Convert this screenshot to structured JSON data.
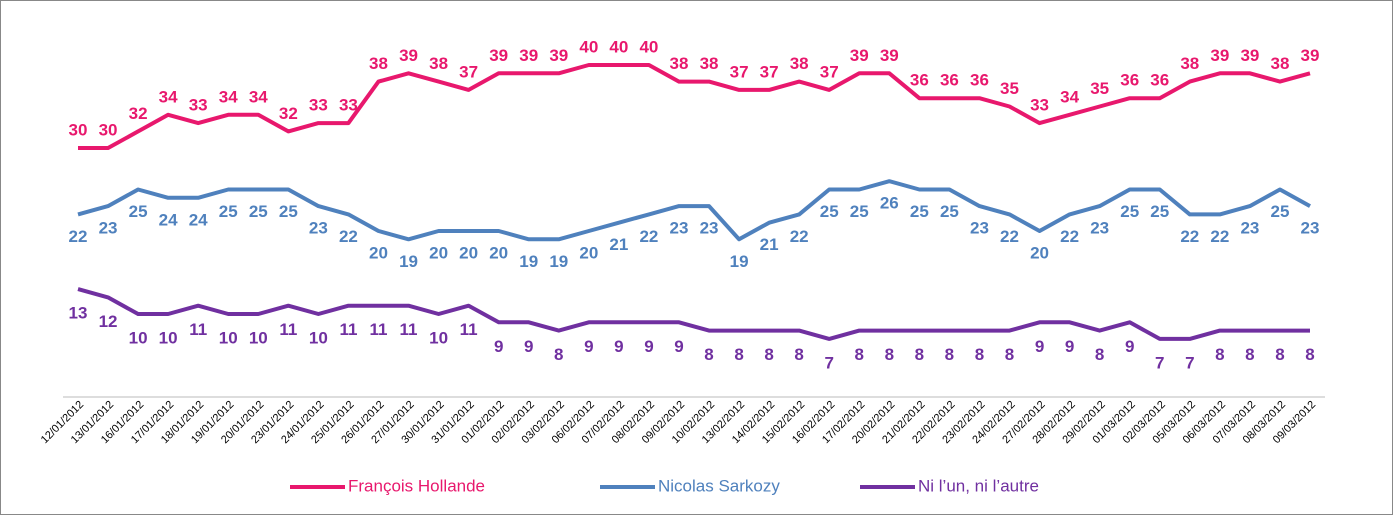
{
  "chart_data": {
    "type": "line",
    "categories": [
      "12/01/2012",
      "13/01/2012",
      "16/01/2012",
      "17/01/2012",
      "18/01/2012",
      "19/01/2012",
      "20/01/2012",
      "23/01/2012",
      "24/01/2012",
      "25/01/2012",
      "26/01/2012",
      "27/01/2012",
      "30/01/2012",
      "31/01/2012",
      "01/02/2012",
      "02/02/2012",
      "03/02/2012",
      "06/02/2012",
      "07/02/2012",
      "08/02/2012",
      "09/02/2012",
      "10/02/2012",
      "13/02/2012",
      "14/02/2012",
      "15/02/2012",
      "16/02/2012",
      "17/02/2012",
      "20/02/2012",
      "21/02/2012",
      "22/02/2012",
      "23/02/2012",
      "24/02/2012",
      "27/02/2012",
      "28/02/2012",
      "29/02/2012",
      "01/03/2012",
      "02/03/2012",
      "05/03/2012",
      "06/03/2012",
      "07/03/2012",
      "08/03/2012",
      "09/03/2012"
    ],
    "series": [
      {
        "name": "François Hollande",
        "color": "#e8186d",
        "values": [
          30,
          30,
          32,
          34,
          33,
          34,
          34,
          32,
          33,
          33,
          38,
          39,
          38,
          37,
          39,
          39,
          39,
          40,
          40,
          40,
          38,
          38,
          37,
          37,
          38,
          37,
          39,
          39,
          36,
          36,
          36,
          35,
          33,
          34,
          35,
          36,
          36,
          38,
          39,
          39,
          38,
          39
        ]
      },
      {
        "name": "Nicolas Sarkozy",
        "color": "#4f81bd",
        "values": [
          22,
          23,
          25,
          24,
          24,
          25,
          25,
          25,
          23,
          22,
          20,
          19,
          20,
          20,
          20,
          19,
          19,
          20,
          21,
          22,
          23,
          23,
          19,
          21,
          22,
          25,
          25,
          26,
          25,
          25,
          23,
          22,
          20,
          22,
          23,
          25,
          25,
          22,
          22,
          23,
          25,
          23
        ]
      },
      {
        "name": "Ni l’un, ni l’autre",
        "color": "#7030a0",
        "values": [
          13,
          12,
          10,
          10,
          11,
          10,
          10,
          11,
          10,
          11,
          11,
          11,
          10,
          11,
          9,
          9,
          8,
          9,
          9,
          9,
          9,
          8,
          8,
          8,
          8,
          7,
          8,
          8,
          8,
          8,
          8,
          8,
          9,
          9,
          8,
          9,
          7,
          7,
          8,
          8,
          8,
          8
        ]
      }
    ]
  }
}
